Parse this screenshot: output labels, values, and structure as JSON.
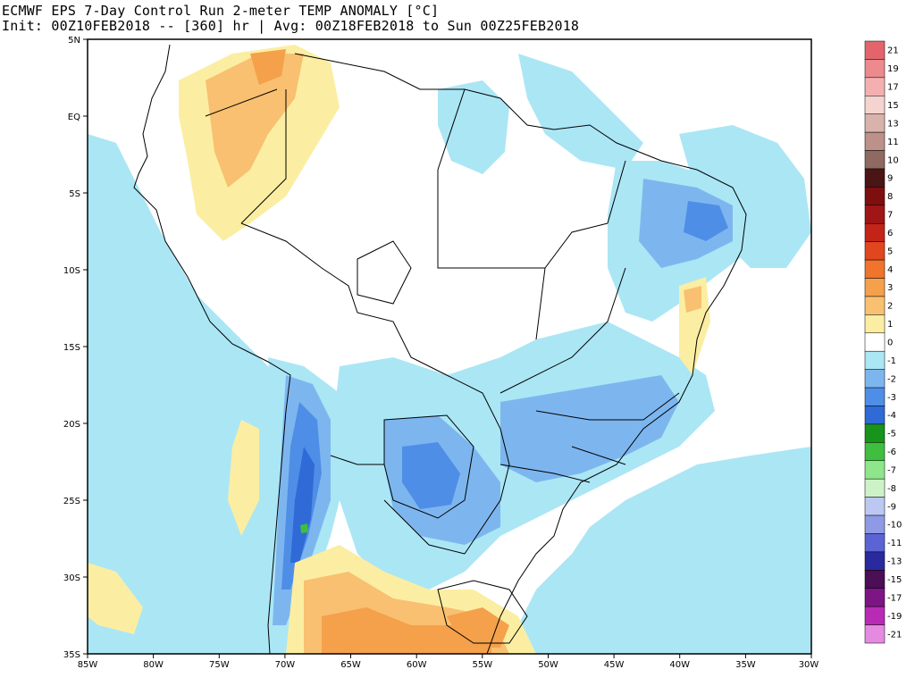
{
  "header": {
    "title_line1": "ECMWF EPS 7-Day Control Run 2-meter TEMP ANOMALY [°C]",
    "title_line2": "Init: 00Z10FEB2018 -- [360] hr | Avg: 00Z18FEB2018 to Sun 00Z25FEB2018"
  },
  "axes": {
    "lat_labels": [
      "5N",
      "EQ",
      "5S",
      "10S",
      "15S",
      "20S",
      "25S",
      "30S",
      "35S"
    ],
    "lon_labels": [
      "85W",
      "80W",
      "75W",
      "70W",
      "65W",
      "60W",
      "55W",
      "50W",
      "45W",
      "40W",
      "35W",
      "30W"
    ]
  },
  "colorbar": {
    "entries": [
      {
        "label": "21",
        "color": "#e3656b"
      },
      {
        "label": "19",
        "color": "#ec8a8d"
      },
      {
        "label": "17",
        "color": "#f4b0b1"
      },
      {
        "label": "15",
        "color": "#f5d3cf"
      },
      {
        "label": "13",
        "color": "#d9b2ac"
      },
      {
        "label": "11",
        "color": "#bb9189"
      },
      {
        "label": "10",
        "color": "#8e6a61"
      },
      {
        "label": "9",
        "color": "#4a1515"
      },
      {
        "label": "8",
        "color": "#7e0f0f"
      },
      {
        "label": "7",
        "color": "#a01515"
      },
      {
        "label": "6",
        "color": "#c42418"
      },
      {
        "label": "5",
        "color": "#e2461f"
      },
      {
        "label": "4",
        "color": "#f0742b"
      },
      {
        "label": "3",
        "color": "#f5a04b"
      },
      {
        "label": "2",
        "color": "#f8c070"
      },
      {
        "label": "1",
        "color": "#fbeea2"
      },
      {
        "label": "0",
        "color": "#ffffff"
      },
      {
        "label": "-1",
        "color": "#abe6f5"
      },
      {
        "label": "-2",
        "color": "#7db6ef"
      },
      {
        "label": "-3",
        "color": "#4f8ee6"
      },
      {
        "label": "-4",
        "color": "#2f6ad6"
      },
      {
        "label": "-5",
        "color": "#17941a"
      },
      {
        "label": "-6",
        "color": "#3fbe3f"
      },
      {
        "label": "-7",
        "color": "#8ee58a"
      },
      {
        "label": "-8",
        "color": "#cdf2c8"
      },
      {
        "label": "-9",
        "color": "#bcc8f2"
      },
      {
        "label": "-10",
        "color": "#8f9ae6"
      },
      {
        "label": "-11",
        "color": "#5a64d4"
      },
      {
        "label": "-13",
        "color": "#2a2a9e"
      },
      {
        "label": "-15",
        "color": "#4a0f54"
      },
      {
        "label": "-17",
        "color": "#7e1585"
      },
      {
        "label": "-19",
        "color": "#b82bb5"
      },
      {
        "label": "-21",
        "color": "#e48ae0"
      }
    ]
  },
  "colors": {
    "ocean_cold": "#abe6f5",
    "cold2": "#7db6ef",
    "cold3": "#4f8ee6",
    "cold4": "#2f6ad6",
    "warm1": "#fbeea2",
    "warm2": "#f8c070",
    "warm3": "#f5a04b",
    "warm4": "#f0742b",
    "lake_green": "#3fbe3f"
  }
}
